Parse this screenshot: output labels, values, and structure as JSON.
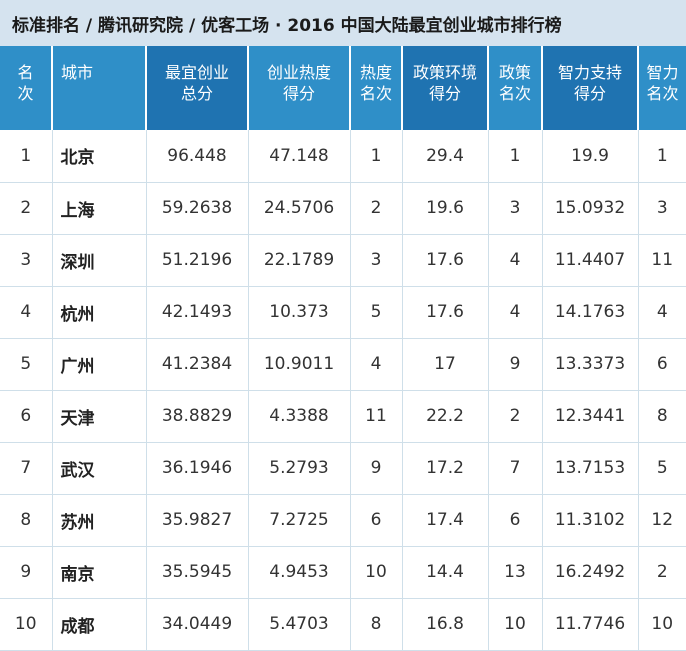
{
  "title": "标准排名 / 腾讯研究院 / 优客工场 · 2016 中国大陆最宜创业城市排行榜",
  "headers": [
    [
      "名",
      "次"
    ],
    [
      "城市",
      ""
    ],
    [
      "最宜创业",
      "总分"
    ],
    [
      "创业热度",
      "得分"
    ],
    [
      "热度",
      "名次"
    ],
    [
      "政策环境",
      "得分"
    ],
    [
      "政策",
      "名次"
    ],
    [
      "智力支持",
      "得分"
    ],
    [
      "智力",
      "名次"
    ]
  ],
  "rows": [
    [
      "1",
      "北京",
      "96.448",
      "47.148",
      "1",
      "29.4",
      "1",
      "19.9",
      "1"
    ],
    [
      "2",
      "上海",
      "59.2638",
      "24.5706",
      "2",
      "19.6",
      "3",
      "15.0932",
      "3"
    ],
    [
      "3",
      "深圳",
      "51.2196",
      "22.1789",
      "3",
      "17.6",
      "4",
      "11.4407",
      "11"
    ],
    [
      "4",
      "杭州",
      "42.1493",
      "10.373",
      "5",
      "17.6",
      "4",
      "14.1763",
      "4"
    ],
    [
      "5",
      "广州",
      "41.2384",
      "10.9011",
      "4",
      "17",
      "9",
      "13.3373",
      "6"
    ],
    [
      "6",
      "天津",
      "38.8829",
      "4.3388",
      "11",
      "22.2",
      "2",
      "12.3441",
      "8"
    ],
    [
      "7",
      "武汉",
      "36.1946",
      "5.2793",
      "9",
      "17.2",
      "7",
      "13.7153",
      "5"
    ],
    [
      "8",
      "苏州",
      "35.9827",
      "7.2725",
      "6",
      "17.4",
      "6",
      "11.3102",
      "12"
    ],
    [
      "9",
      "南京",
      "35.5945",
      "4.9453",
      "10",
      "14.4",
      "13",
      "16.2492",
      "2"
    ],
    [
      "10",
      "成都",
      "34.0449",
      "5.4703",
      "8",
      "16.8",
      "10",
      "11.7746",
      "10"
    ]
  ],
  "colors": {
    "header": "#2f8fc8",
    "header_highlight": "#1f73b1",
    "title_bg": "#d5e3ef"
  }
}
